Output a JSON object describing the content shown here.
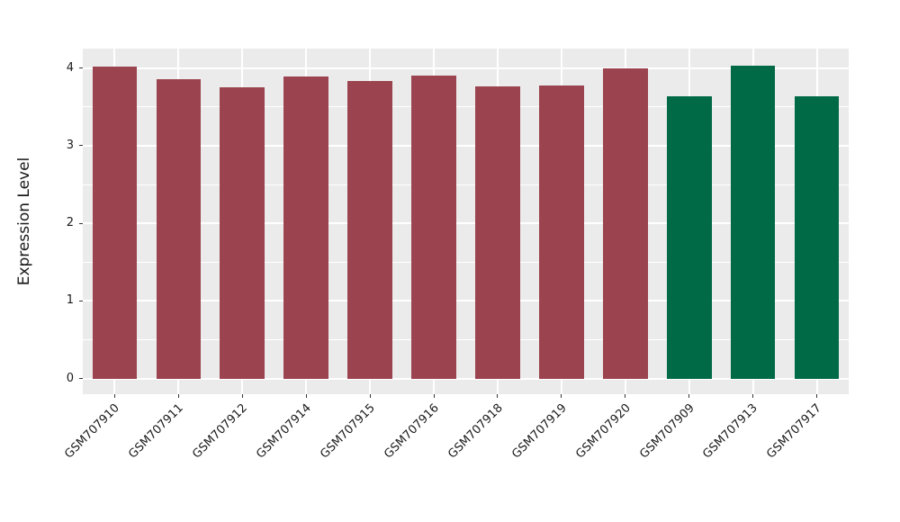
{
  "chart_data": {
    "type": "bar",
    "title": "",
    "xlabel": "",
    "ylabel": "Expression Level",
    "categories": [
      "GSM707910",
      "GSM707911",
      "GSM707912",
      "GSM707914",
      "GSM707915",
      "GSM707916",
      "GSM707918",
      "GSM707919",
      "GSM707920",
      "GSM707909",
      "GSM707913",
      "GSM707917"
    ],
    "values": [
      4.02,
      3.86,
      3.75,
      3.89,
      3.83,
      3.9,
      3.76,
      3.78,
      4.0,
      3.64,
      4.03,
      3.64
    ],
    "bar_colors": [
      "#9B4450",
      "#9B4450",
      "#9B4450",
      "#9B4450",
      "#9B4450",
      "#9B4450",
      "#9B4450",
      "#9B4450",
      "#9B4450",
      "#006946",
      "#006946",
      "#006946"
    ],
    "color_legend": {
      "red_group_color": "#9B4450",
      "green_group_color": "#006946"
    },
    "yticks": [
      0,
      1,
      2,
      3,
      4
    ],
    "y_minor_gridlines": [
      0.5,
      1.5,
      2.5,
      3.5
    ],
    "ylim": [
      -0.2,
      4.25
    ],
    "x_tick_label_angle": 45,
    "grid": "on",
    "legend": "none",
    "panel_background": "#EBEBEB",
    "gridline_color": "#FFFFFF",
    "axis_text_color": "#1a1a1a",
    "tick_mark_color": "#333333",
    "bar_width_ratio": 0.7
  }
}
